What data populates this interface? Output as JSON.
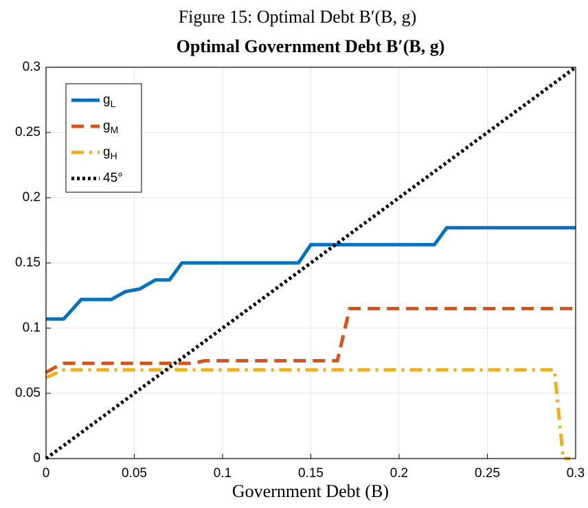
{
  "chart_data": {
    "type": "line",
    "figure_caption": "Figure 15: Optimal Debt B′(B, g)",
    "title": "Optimal Government Debt B′(B, g)",
    "x_label": "Government Debt (B)",
    "xlim": [
      0,
      0.3
    ],
    "xticks": [
      0,
      0.05,
      0.1,
      0.15,
      0.2,
      0.25,
      0.3
    ],
    "ylim": [
      0,
      0.3
    ],
    "yticks": [
      0,
      0.05,
      0.1,
      0.15,
      0.2,
      0.25,
      0.3
    ],
    "grid": true,
    "legend": "upper left",
    "series": [
      {
        "name": "gL",
        "color": "#0072BD",
        "style": "solid",
        "x": [
          0,
          0.01,
          0.02,
          0.037,
          0.045,
          0.053,
          0.062,
          0.07,
          0.077,
          0.143,
          0.15,
          0.22,
          0.227,
          0.3
        ],
        "values": [
          0.107,
          0.107,
          0.122,
          0.122,
          0.128,
          0.13,
          0.137,
          0.137,
          0.15,
          0.15,
          0.164,
          0.164,
          0.177,
          0.177
        ]
      },
      {
        "name": "gM",
        "color": "#D95319",
        "style": "dashed",
        "x": [
          0,
          0.008,
          0.01,
          0.083,
          0.09,
          0.165,
          0.172,
          0.3
        ],
        "values": [
          0.066,
          0.072,
          0.073,
          0.073,
          0.075,
          0.075,
          0.115,
          0.115
        ]
      },
      {
        "name": "gH",
        "color": "#EDB120",
        "style": "dashdot",
        "x": [
          0,
          0.01,
          0.288,
          0.293,
          0.297
        ],
        "values": [
          0.062,
          0.068,
          0.068,
          0,
          0
        ]
      },
      {
        "name": "45°",
        "color": "#000000",
        "style": "dotted",
        "x": [
          0,
          0.3
        ],
        "values": [
          0,
          0.3
        ]
      }
    ]
  }
}
